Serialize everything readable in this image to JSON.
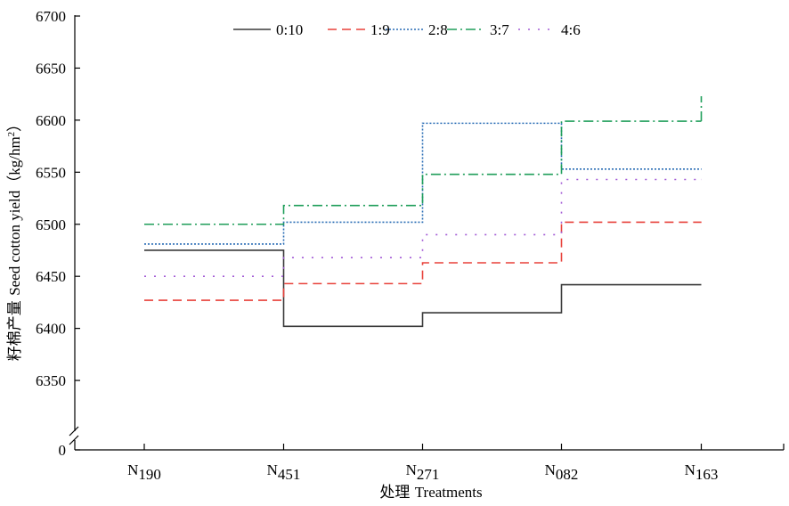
{
  "chart_data": {
    "type": "line",
    "step": true,
    "xlabel": "处理 Treatments",
    "ylabel": "籽棉产量 Seed cotton yield（kg/hm²）",
    "ylabel_cn": "籽棉产量",
    "ylabel_en": "Seed cotton yield（kg/hm",
    "ylabel_sup": "2",
    "ylabel_close": "）",
    "xlabel_cn": "处理",
    "xlabel_en": "Treatments",
    "categories": [
      {
        "base": "N",
        "sub": "190"
      },
      {
        "base": "N",
        "sub": "451"
      },
      {
        "base": "N",
        "sub": "271"
      },
      {
        "base": "N",
        "sub": "082"
      },
      {
        "base": "N",
        "sub": "163"
      }
    ],
    "ylim": [
      6300,
      6700
    ],
    "y_axis_break": true,
    "y_zero_label": "0",
    "yticks": [
      6350,
      6400,
      6450,
      6500,
      6550,
      6600,
      6650,
      6700
    ],
    "legend_position": "top",
    "series": [
      {
        "name": "0:10",
        "color": "#3a3a3a",
        "dash": "solid",
        "values": [
          6475,
          6402,
          6415,
          6442,
          6442
        ]
      },
      {
        "name": "1:9",
        "color": "#e8413a",
        "dash": "dashed",
        "values": [
          6427,
          6443,
          6463,
          6502,
          6502
        ]
      },
      {
        "name": "2:8",
        "color": "#2a6db5",
        "dash": "dotted",
        "values": [
          6481,
          6502,
          6597,
          6553,
          6553
        ]
      },
      {
        "name": "3:7",
        "color": "#1f9e5a",
        "dash": "dashdot",
        "values": [
          6500,
          6518,
          6548,
          6599,
          6599
        ]
      },
      {
        "name": "4:6",
        "color": "#a35bd6",
        "dash": "sparse",
        "values": [
          6450,
          6468,
          6490,
          6543,
          6543
        ]
      }
    ]
  }
}
